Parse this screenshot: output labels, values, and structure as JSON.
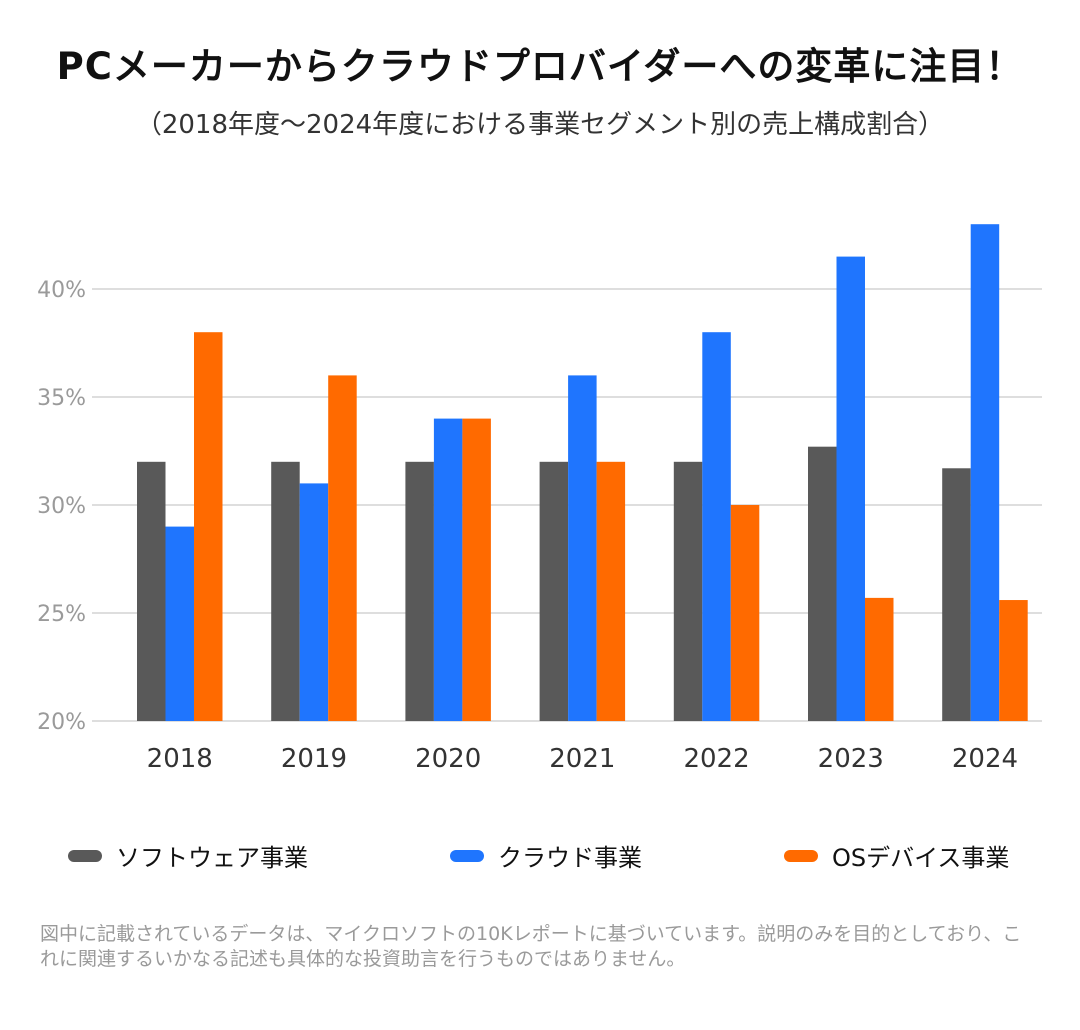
{
  "title": "PCメーカーからクラウドプロバイダーへの変革に注目！",
  "subtitle": "（2018年度〜2024年度における事業セグメント別の売上構成割合）",
  "footnote": "図中に記載されているデータは、マイクロソフトの10Kレポートに基づいています。説明のみを目的としており、これに関連するいかなる記述も具体的な投資助言を行うものではありません。",
  "chart_data": {
    "type": "bar",
    "categories": [
      "2018",
      "2019",
      "2020",
      "2021",
      "2022",
      "2023",
      "2024"
    ],
    "series": [
      {
        "name": "ソフトウェア事業",
        "color": "#595959",
        "values": [
          32,
          32,
          32,
          32,
          32,
          32.7,
          31.7
        ]
      },
      {
        "name": "クラウド事業",
        "color": "#1f75fe",
        "values": [
          29,
          31,
          34,
          36,
          38,
          41.5,
          43
        ]
      },
      {
        "name": "OSデバイス事業",
        "color": "#ff6a00",
        "values": [
          38,
          36,
          34,
          32,
          30,
          25.7,
          25.6
        ]
      }
    ],
    "yticks": [
      "20%",
      "25%",
      "30%",
      "35%",
      "40%"
    ],
    "ylim": [
      20,
      44
    ],
    "grid": true,
    "legend_position": "bottom"
  }
}
